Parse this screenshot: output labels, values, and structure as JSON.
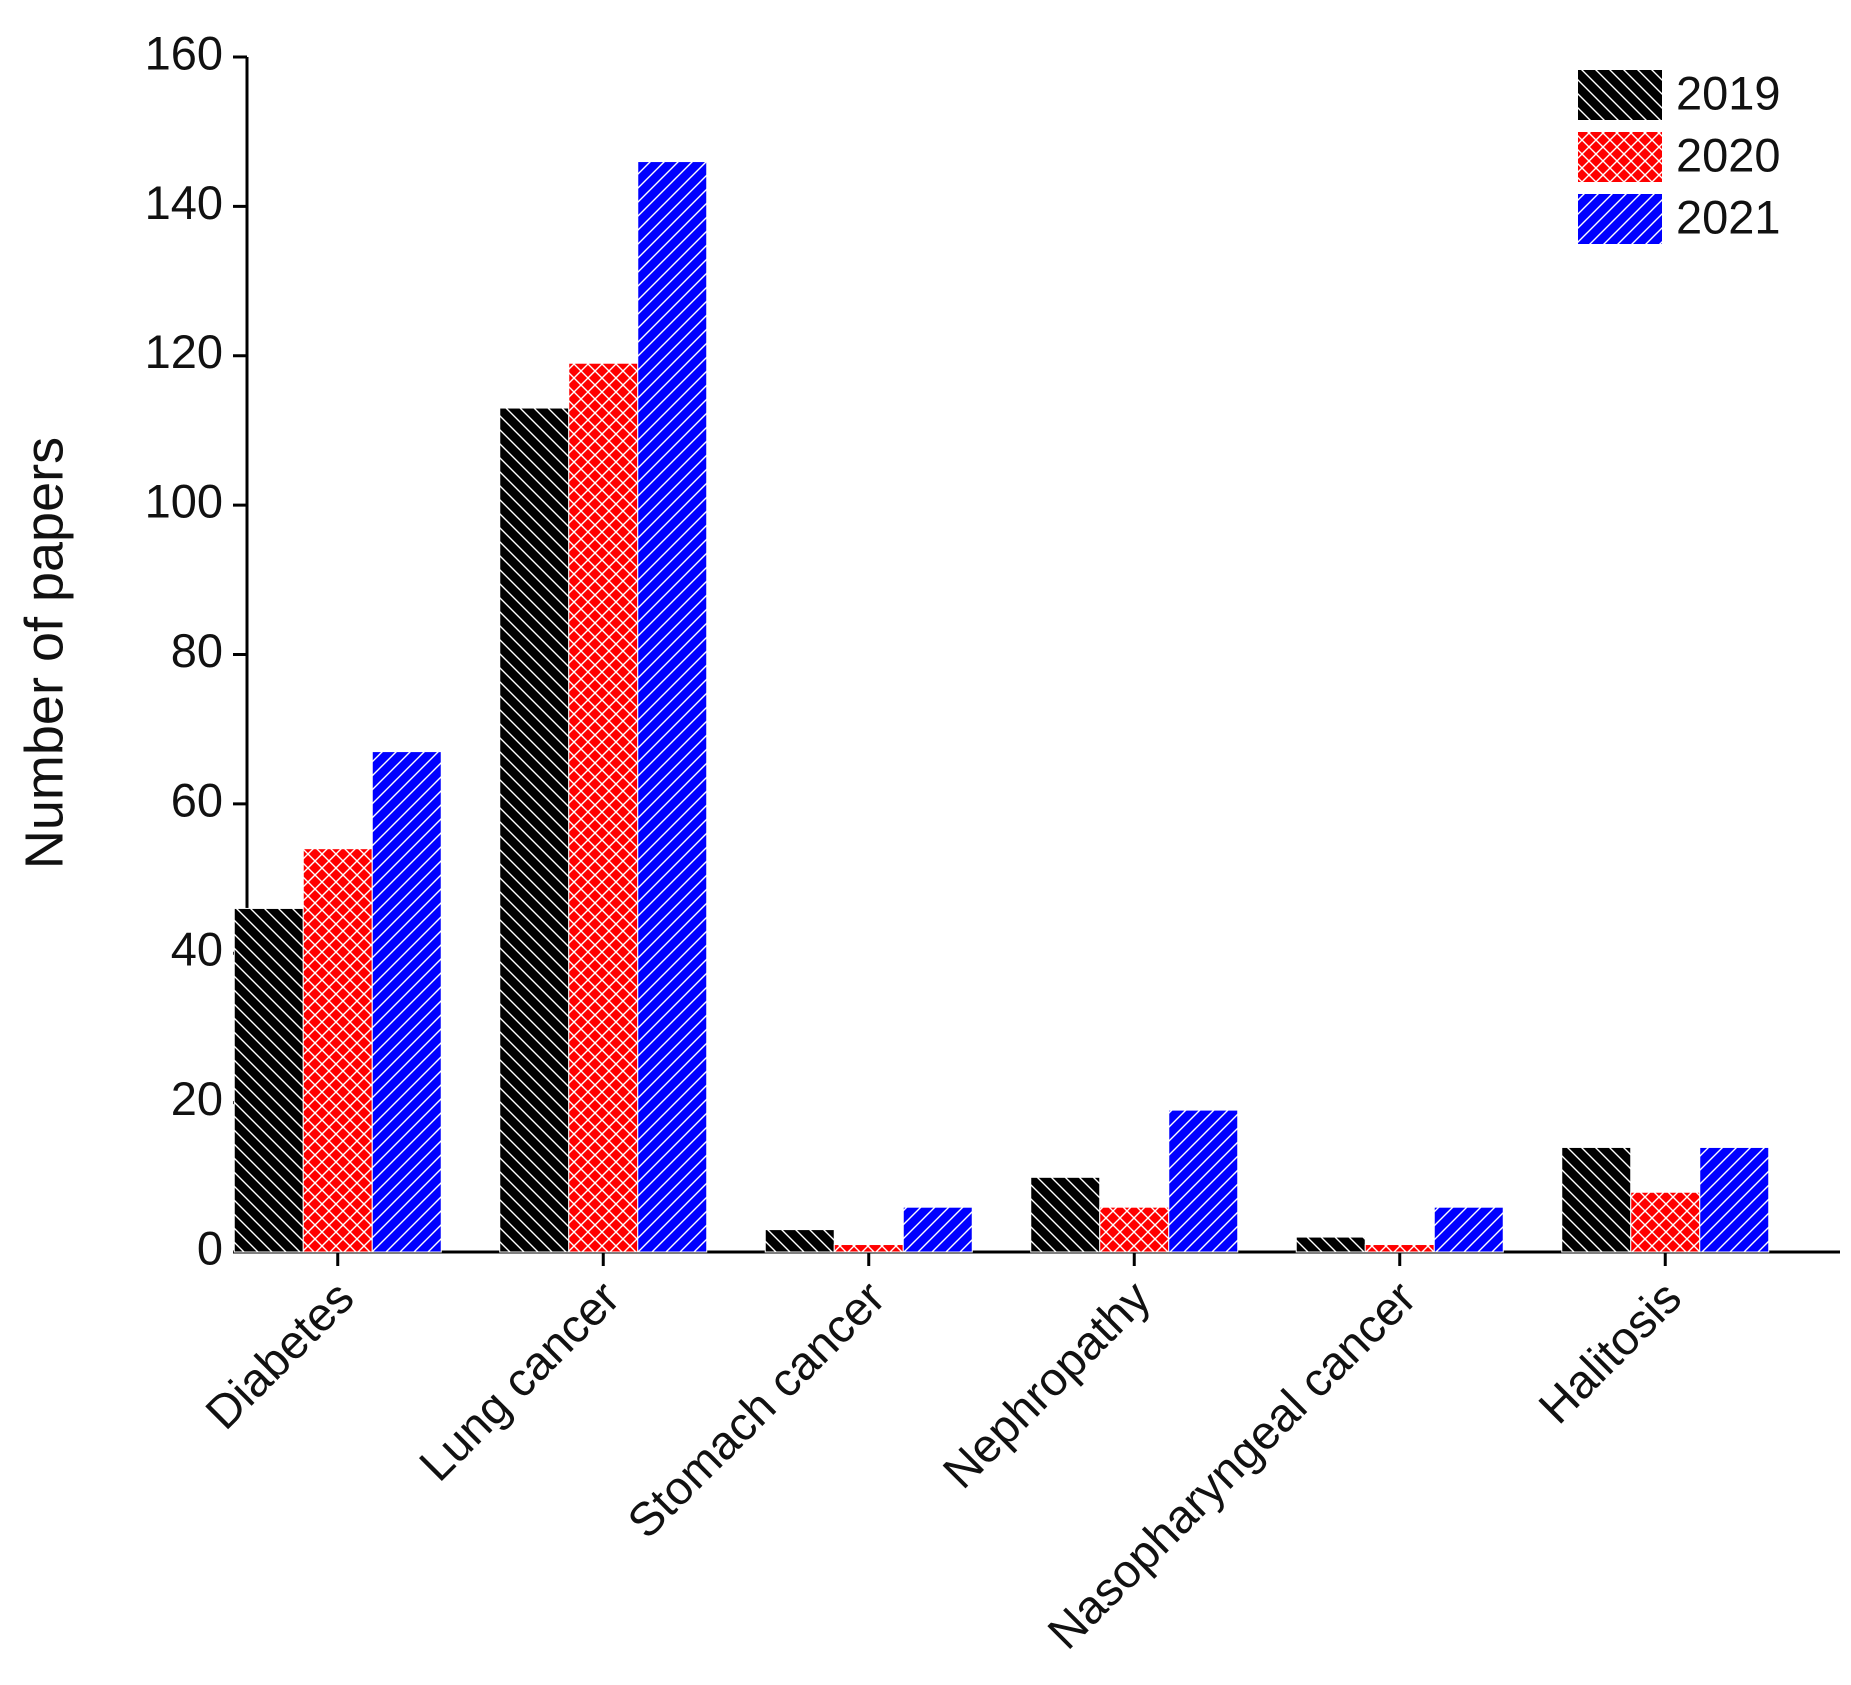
{
  "chart_data": {
    "type": "bar",
    "ylabel": "Number of papers",
    "categories": [
      "Diabetes",
      "Lung cancer",
      "Stomach cancer",
      "Nephropathy",
      "Nasopharyngeal cancer",
      "Halitosis"
    ],
    "series": [
      {
        "name": "2019",
        "color": "#000000",
        "hatch": "backslash",
        "values": [
          46,
          113,
          3,
          10,
          2,
          14
        ]
      },
      {
        "name": "2020",
        "color": "#ff0000",
        "hatch": "cross",
        "values": [
          54,
          119,
          1,
          6,
          1,
          8
        ]
      },
      {
        "name": "2021",
        "color": "#0000ff",
        "hatch": "slash",
        "values": [
          67,
          146,
          6,
          19,
          6,
          14
        ]
      }
    ],
    "ylim": [
      0,
      160
    ],
    "yticks": [
      0,
      20,
      40,
      60,
      80,
      100,
      120,
      140,
      160
    ],
    "grid": false,
    "legend": "upper right"
  }
}
